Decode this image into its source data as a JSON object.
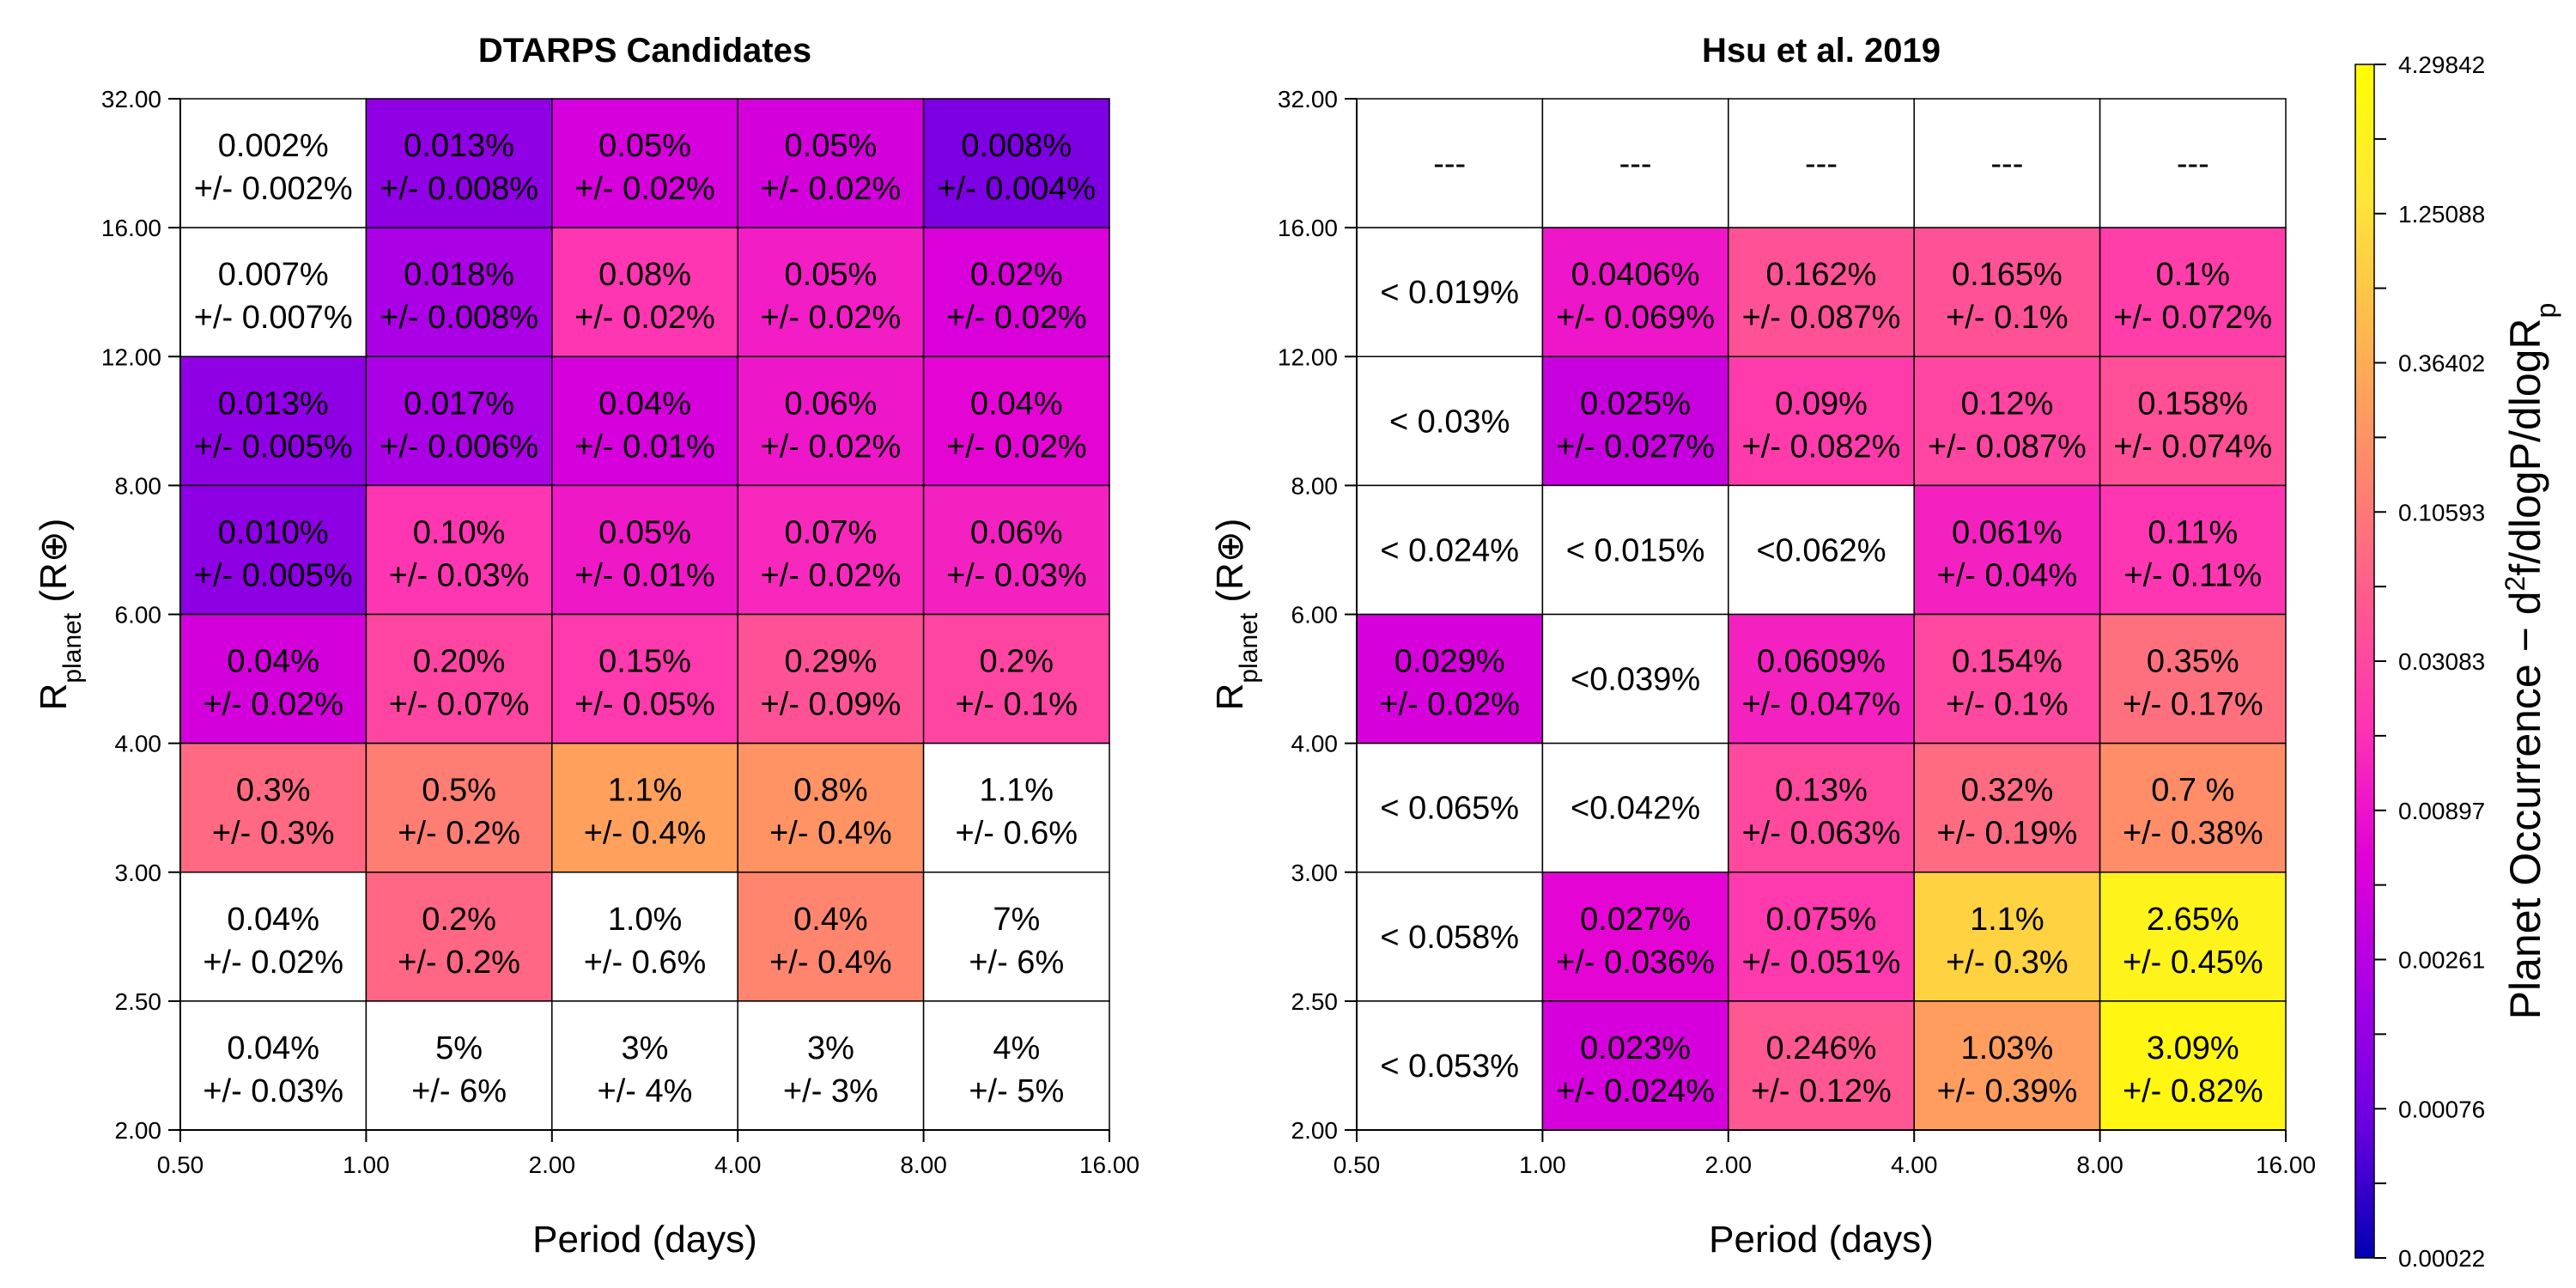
{
  "chart_data": [
    {
      "type": "heatmap",
      "title": "DTARPS Candidates",
      "xlabel": "Period (days)",
      "ylabel_main": "R",
      "ylabel_sub": "planet",
      "ylabel_unit": "(R⊕)",
      "x_ticks": [
        "0.50",
        "1.00",
        "2.00",
        "4.00",
        "8.00",
        "16.00"
      ],
      "y_ticks": [
        "2.00",
        "2.50",
        "3.00",
        "4.00",
        "6.00",
        "8.00",
        "12.00",
        "16.00",
        "32.00"
      ],
      "rows": [
        {
          "radius_bin": "16.00-32.00",
          "cells": [
            {
              "line1": "0.002%",
              "line2": "+/- 0.002%",
              "value": null
            },
            {
              "line1": "0.013%",
              "line2": "+/- 0.008%",
              "value": 0.0013
            },
            {
              "line1": "0.05%",
              "line2": "+/- 0.02%",
              "value": 0.0047
            },
            {
              "line1": "0.05%",
              "line2": "+/- 0.02%",
              "value": 0.0045
            },
            {
              "line1": "0.008%",
              "line2": "+/- 0.004%",
              "value": 0.0009
            }
          ]
        },
        {
          "radius_bin": "12.00-16.00",
          "cells": [
            {
              "line1": "0.007%",
              "line2": "+/- 0.007%",
              "value": null
            },
            {
              "line1": "0.018%",
              "line2": "+/- 0.008%",
              "value": 0.0021
            },
            {
              "line1": "0.08%",
              "line2": "+/- 0.02%",
              "value": 0.019
            },
            {
              "line1": "0.05%",
              "line2": "+/- 0.02%",
              "value": 0.011
            },
            {
              "line1": "0.02%",
              "line2": "+/- 0.02%",
              "value": 0.0052
            }
          ]
        },
        {
          "radius_bin": "8.00-12.00",
          "cells": [
            {
              "line1": "0.013%",
              "line2": "+/- 0.005%",
              "value": 0.0013
            },
            {
              "line1": "0.017%",
              "line2": "+/- 0.006%",
              "value": 0.0021
            },
            {
              "line1": "0.04%",
              "line2": "+/- 0.01%",
              "value": 0.0047
            },
            {
              "line1": "0.06%",
              "line2": "+/- 0.02%",
              "value": 0.0095
            },
            {
              "line1": "0.04%",
              "line2": "+/- 0.02%",
              "value": 0.0066
            }
          ]
        },
        {
          "radius_bin": "6.00-8.00",
          "cells": [
            {
              "line1": "0.010%",
              "line2": "+/- 0.005%",
              "value": 0.0012
            },
            {
              "line1": "0.10%",
              "line2": "+/- 0.03%",
              "value": 0.019
            },
            {
              "line1": "0.05%",
              "line2": "+/- 0.01%",
              "value": 0.01
            },
            {
              "line1": "0.07%",
              "line2": "+/- 0.02%",
              "value": 0.014
            },
            {
              "line1": "0.06%",
              "line2": "+/- 0.03%",
              "value": 0.012
            }
          ]
        },
        {
          "radius_bin": "4.00-6.00",
          "cells": [
            {
              "line1": "0.04%",
              "line2": "+/- 0.02%",
              "value": 0.0045
            },
            {
              "line1": "0.20%",
              "line2": "+/- 0.07%",
              "value": 0.029
            },
            {
              "line1": "0.15%",
              "line2": "+/- 0.05%",
              "value": 0.021
            },
            {
              "line1": "0.29%",
              "line2": "+/- 0.09%",
              "value": 0.041
            },
            {
              "line1": "0.2%",
              "line2": "+/- 0.1%",
              "value": 0.029
            }
          ]
        },
        {
          "radius_bin": "3.00-4.00",
          "cells": [
            {
              "line1": "0.3%",
              "line2": "+/- 0.3%",
              "value": 0.073
            },
            {
              "line1": "0.5%",
              "line2": "+/- 0.2%",
              "value": 0.12
            },
            {
              "line1": "1.1%",
              "line2": "+/- 0.4%",
              "value": 0.27
            },
            {
              "line1": "0.8%",
              "line2": "+/- 0.4%",
              "value": 0.2
            },
            {
              "line1": "1.1%",
              "line2": "+/- 0.6%",
              "value": null
            }
          ]
        },
        {
          "radius_bin": "2.50-3.00",
          "cells": [
            {
              "line1": "0.04%",
              "line2": "+/- 0.02%",
              "value": null
            },
            {
              "line1": "0.2%",
              "line2": "+/- 0.2%",
              "value": 0.069
            },
            {
              "line1": "1.0%",
              "line2": "+/- 0.6%",
              "value": null
            },
            {
              "line1": "0.4%",
              "line2": "+/- 0.4%",
              "value": 0.14
            },
            {
              "line1": "7%",
              "line2": "+/-  6%",
              "value": null
            }
          ]
        },
        {
          "radius_bin": "2.00-2.50",
          "cells": [
            {
              "line1": "0.04%",
              "line2": "+/- 0.03%",
              "value": null
            },
            {
              "line1": "5%",
              "line2": "+/-  6%",
              "value": null
            },
            {
              "line1": "3%",
              "line2": "+/-  4%",
              "value": null
            },
            {
              "line1": "3%",
              "line2": "+/-  3%",
              "value": null
            },
            {
              "line1": "4%",
              "line2": "+/-  5%",
              "value": null
            }
          ]
        }
      ]
    },
    {
      "type": "heatmap",
      "title": "Hsu et al. 2019",
      "xlabel": "Period (days)",
      "ylabel_main": "R",
      "ylabel_sub": "planet",
      "ylabel_unit": "(R⊕)",
      "x_ticks": [
        "0.50",
        "1.00",
        "2.00",
        "4.00",
        "8.00",
        "16.00"
      ],
      "y_ticks": [
        "2.00",
        "2.50",
        "3.00",
        "4.00",
        "6.00",
        "8.00",
        "12.00",
        "16.00",
        "32.00"
      ],
      "rows": [
        {
          "radius_bin": "16.00-32.00",
          "cells": [
            {
              "line1": "---",
              "line2": "",
              "value": null
            },
            {
              "line1": "---",
              "line2": "",
              "value": null
            },
            {
              "line1": "---",
              "line2": "",
              "value": null
            },
            {
              "line1": "---",
              "line2": "",
              "value": null
            },
            {
              "line1": "---",
              "line2": "",
              "value": null
            }
          ]
        },
        {
          "radius_bin": "12.00-16.00",
          "cells": [
            {
              "line1": "< 0.019%",
              "line2": "",
              "value": null
            },
            {
              "line1": "0.0406%",
              "line2": "+/- 0.069%",
              "value": 0.0095
            },
            {
              "line1": "0.162%",
              "line2": "+/- 0.087%",
              "value": 0.04
            },
            {
              "line1": "0.165%",
              "line2": "+/- 0.1%",
              "value": 0.041
            },
            {
              "line1": "0.1%",
              "line2": "+/- 0.072%",
              "value": 0.024
            }
          ]
        },
        {
          "radius_bin": "8.00-12.00",
          "cells": [
            {
              "line1": "< 0.03%",
              "line2": "",
              "value": null
            },
            {
              "line1": "0.025%",
              "line2": "+/- 0.027%",
              "value": 0.0036
            },
            {
              "line1": "0.09%",
              "line2": "+/- 0.082%",
              "value": 0.022
            },
            {
              "line1": "0.12%",
              "line2": "+/- 0.087%",
              "value": 0.029
            },
            {
              "line1": "0.158%",
              "line2": "+/- 0.074%",
              "value": 0.039
            }
          ]
        },
        {
          "radius_bin": "6.00-8.00",
          "cells": [
            {
              "line1": "< 0.024%",
              "line2": "",
              "value": null
            },
            {
              "line1": "< 0.015%",
              "line2": "",
              "value": null
            },
            {
              "line1": "<0.062%",
              "line2": "",
              "value": null
            },
            {
              "line1": "0.061%",
              "line2": "+/- 0.04%",
              "value": 0.012
            },
            {
              "line1": "0.11%",
              "line2": "+/- 0.11%",
              "value": 0.019
            }
          ]
        },
        {
          "radius_bin": "4.00-6.00",
          "cells": [
            {
              "line1": "0.029%",
              "line2": "+/- 0.02%",
              "value": 0.0048
            },
            {
              "line1": "<0.039%",
              "line2": "",
              "value": null
            },
            {
              "line1": "0.0609%",
              "line2": "+/- 0.047%",
              "value": 0.012
            },
            {
              "line1": "0.154%",
              "line2": "+/- 0.1%",
              "value": 0.031
            },
            {
              "line1": "0.35%",
              "line2": "+/- 0.17%",
              "value": 0.085
            }
          ]
        },
        {
          "radius_bin": "3.00-4.00",
          "cells": [
            {
              "line1": "< 0.065%",
              "line2": "",
              "value": null
            },
            {
              "line1": "<0.042%",
              "line2": "",
              "value": null
            },
            {
              "line1": "0.13%",
              "line2": "+/- 0.063%",
              "value": 0.032
            },
            {
              "line1": "0.32%",
              "line2": "+/- 0.19%",
              "value": 0.077
            },
            {
              "line1": "0.7 %",
              "line2": "+/- 0.38%",
              "value": 0.17
            }
          ]
        },
        {
          "radius_bin": "2.50-3.00",
          "cells": [
            {
              "line1": "< 0.058%",
              "line2": "",
              "value": null
            },
            {
              "line1": "0.027%",
              "line2": "+/- 0.036%",
              "value": 0.0066
            },
            {
              "line1": "0.075%",
              "line2": "+/- 0.051%",
              "value": 0.021
            },
            {
              "line1": "1.1%",
              "line2": "+/- 0.3%",
              "value": 0.9
            },
            {
              "line1": "2.65%",
              "line2": "+/- 0.45%",
              "value": 2.5
            }
          ]
        },
        {
          "radius_bin": "2.00-2.50",
          "cells": [
            {
              "line1": "< 0.053%",
              "line2": "",
              "value": null
            },
            {
              "line1": "0.023%",
              "line2": "+/- 0.024%",
              "value": 0.0047
            },
            {
              "line1": "0.246%",
              "line2": "+/- 0.12%",
              "value": 0.047
            },
            {
              "line1": "1.03%",
              "line2": "+/- 0.39%",
              "value": 0.25
            },
            {
              "line1": "3.09%",
              "line2": "+/- 0.82%",
              "value": 3.0
            }
          ]
        }
      ]
    }
  ],
  "colorbar": {
    "label_prefix": "Planet Occurrence − d",
    "label_sup": "2",
    "label_mid": "f/dlogP/dlogR",
    "label_sub": "p",
    "ticks": [
      "0.00022",
      "0.00076",
      "0.00261",
      "0.00897",
      "0.03083",
      "0.10593",
      "0.36402",
      "1.25088",
      "4.29842"
    ],
    "min": 0.00022,
    "max": 4.29842,
    "scale": "log",
    "colors": [
      "#0000b4",
      "#6a00e0",
      "#a800e6",
      "#e100d8",
      "#ff33b4",
      "#ff5c8c",
      "#ff8a6a",
      "#ffb84e",
      "#ffe638",
      "#ffff00"
    ]
  }
}
